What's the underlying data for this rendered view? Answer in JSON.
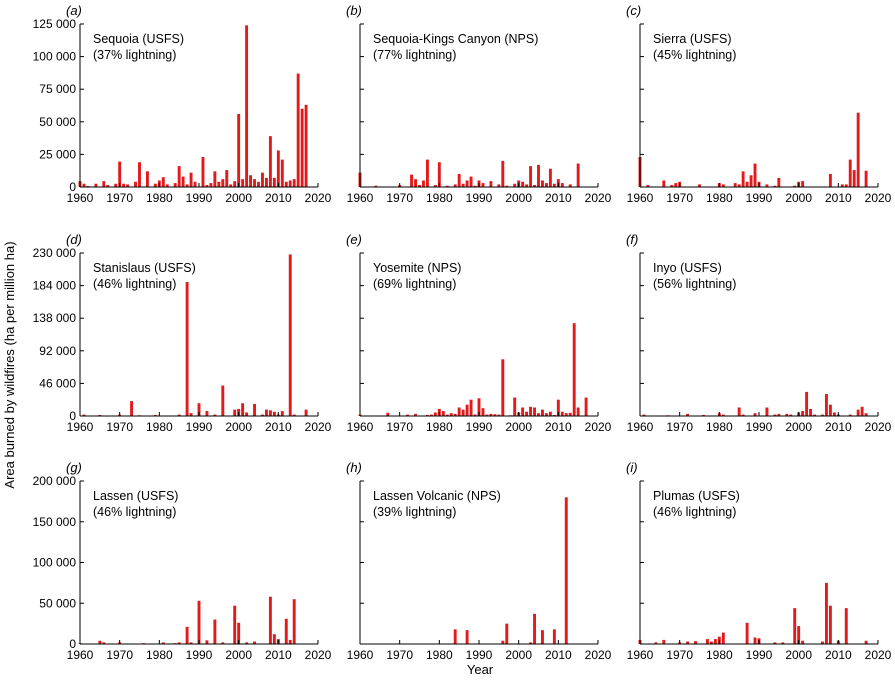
{
  "figure": {
    "ylabel": "Area burned by wildfires (ha per million ha)",
    "xlabel": "Year",
    "bar_color": "#e31a1c"
  },
  "chart_data": [
    {
      "type": "bar",
      "panel": "(a)",
      "title": "Sequoia (USFS)",
      "subtitle": "(37% lightning)",
      "xlim": [
        1960,
        2020
      ],
      "ylim": [
        0,
        125000
      ],
      "xticks": [
        1960,
        1970,
        1980,
        1990,
        2000,
        2010,
        2020
      ],
      "yticks": [
        0,
        25000,
        50000,
        75000,
        100000,
        125000
      ],
      "ytick_labels": [
        "0",
        "25 000",
        "50 000",
        "75 000",
        "100 000",
        "125 000"
      ],
      "x": [
        1960,
        1961,
        1962,
        1964,
        1966,
        1967,
        1969,
        1970,
        1971,
        1972,
        1974,
        1975,
        1977,
        1979,
        1980,
        1981,
        1982,
        1984,
        1985,
        1986,
        1987,
        1988,
        1989,
        1991,
        1992,
        1993,
        1994,
        1995,
        1996,
        1997,
        1998,
        1999,
        2000,
        2001,
        2002,
        2003,
        2004,
        2005,
        2006,
        2007,
        2008,
        2009,
        2010,
        2011,
        2012,
        2013,
        2014,
        2015,
        2016,
        2017
      ],
      "values": [
        4500,
        2500,
        800,
        2500,
        4500,
        1500,
        2500,
        19500,
        2500,
        2000,
        4000,
        19000,
        12000,
        2500,
        5000,
        7500,
        2000,
        3000,
        16000,
        8000,
        2000,
        11000,
        4000,
        23000,
        1500,
        3000,
        12000,
        4000,
        6000,
        13000,
        2000,
        4500,
        56000,
        6000,
        124000,
        9000,
        6000,
        4000,
        11000,
        7000,
        39000,
        7000,
        28000,
        21000,
        4000,
        5000,
        6000,
        87000,
        60000,
        63000
      ]
    },
    {
      "type": "bar",
      "panel": "(b)",
      "title": "Sequoia-Kings Canyon (NPS)",
      "subtitle": "(77% lightning)",
      "xlim": [
        1960,
        2020
      ],
      "ylim": [
        0,
        125000
      ],
      "xticks": [
        1960,
        1970,
        1980,
        1990,
        2000,
        2010,
        2020
      ],
      "x": [
        1960,
        1964,
        1970,
        1973,
        1974,
        1975,
        1976,
        1977,
        1979,
        1980,
        1982,
        1984,
        1985,
        1986,
        1987,
        1988,
        1989,
        1990,
        1991,
        1993,
        1995,
        1996,
        1997,
        1999,
        2000,
        2001,
        2002,
        2003,
        2004,
        2005,
        2006,
        2007,
        2008,
        2009,
        2010,
        2011,
        2013,
        2015
      ],
      "values": [
        11000,
        1000,
        1500,
        9500,
        6000,
        1500,
        5000,
        21000,
        1500,
        19000,
        1000,
        2000,
        10000,
        2500,
        5000,
        8000,
        1000,
        5000,
        3000,
        4500,
        2000,
        20000,
        1000,
        2500,
        5000,
        4000,
        2000,
        16000,
        1500,
        17000,
        5000,
        3000,
        14000,
        2500,
        6000,
        3000,
        2000,
        18000
      ]
    },
    {
      "type": "bar",
      "panel": "(c)",
      "title": "Sierra (USFS)",
      "subtitle": "(45% lightning)",
      "xlim": [
        1960,
        2020
      ],
      "ylim": [
        0,
        125000
      ],
      "xticks": [
        1960,
        1970,
        1980,
        1990,
        2000,
        2010,
        2020
      ],
      "x": [
        1960,
        1962,
        1966,
        1968,
        1969,
        1970,
        1975,
        1980,
        1981,
        1984,
        1985,
        1986,
        1987,
        1988,
        1989,
        1990,
        1992,
        1994,
        1995,
        1999,
        2000,
        2001,
        2008,
        2011,
        2012,
        2013,
        2014,
        2015,
        2017
      ],
      "values": [
        23000,
        1500,
        5000,
        1500,
        3000,
        4000,
        2000,
        3000,
        2000,
        3000,
        2000,
        12000,
        4000,
        9000,
        18000,
        4000,
        2000,
        1000,
        7000,
        1000,
        4000,
        4500,
        10000,
        2000,
        2000,
        21000,
        13000,
        57000,
        12500
      ]
    },
    {
      "type": "bar",
      "panel": "(d)",
      "title": "Stanislaus (USFS)",
      "subtitle": "(46% lightning)",
      "xlim": [
        1960,
        2020
      ],
      "ylim": [
        0,
        230000
      ],
      "xticks": [
        1960,
        1970,
        1980,
        1990,
        2000,
        2010,
        2020
      ],
      "yticks": [
        0,
        46000,
        92000,
        138000,
        184000,
        230000
      ],
      "ytick_labels": [
        "0",
        "46 000",
        "92 000",
        "138 000",
        "184 000",
        "230 000"
      ],
      "x": [
        1961,
        1965,
        1970,
        1973,
        1975,
        1979,
        1985,
        1987,
        1988,
        1990,
        1992,
        1994,
        1996,
        1999,
        2000,
        2001,
        2002,
        2004,
        2006,
        2007,
        2008,
        2009,
        2010,
        2011,
        2013,
        2014,
        2017
      ],
      "values": [
        2000,
        1500,
        2000,
        21000,
        1000,
        1500,
        2000,
        189000,
        4000,
        18000,
        7000,
        2000,
        43000,
        9000,
        10000,
        18000,
        5000,
        17000,
        2000,
        9000,
        8000,
        6000,
        2000,
        7000,
        228000,
        2000,
        9000
      ]
    },
    {
      "type": "bar",
      "panel": "(e)",
      "title": "Yosemite (NPS)",
      "subtitle": "(69% lightning)",
      "xlim": [
        1960,
        2020
      ],
      "ylim": [
        0,
        230000
      ],
      "xticks": [
        1960,
        1970,
        1980,
        1990,
        2000,
        2010,
        2020
      ],
      "x": [
        1960,
        1967,
        1972,
        1974,
        1977,
        1978,
        1979,
        1980,
        1981,
        1982,
        1983,
        1984,
        1985,
        1986,
        1987,
        1988,
        1989,
        1990,
        1991,
        1992,
        1993,
        1994,
        1995,
        1996,
        1998,
        1999,
        2000,
        2001,
        2002,
        2003,
        2004,
        2005,
        2006,
        2007,
        2008,
        2009,
        2010,
        2011,
        2012,
        2013,
        2014,
        2015,
        2017
      ],
      "values": [
        2000,
        4500,
        2000,
        3000,
        1500,
        2000,
        5000,
        10000,
        7000,
        2000,
        4000,
        3000,
        12000,
        9000,
        16000,
        23000,
        2000,
        25000,
        11000,
        2000,
        3000,
        2500,
        2000,
        80000,
        1000,
        26000,
        5000,
        12000,
        6000,
        13000,
        12000,
        4000,
        9000,
        4000,
        6000,
        1500,
        23000,
        6000,
        4000,
        4500,
        131000,
        12000,
        26000
      ]
    },
    {
      "type": "bar",
      "panel": "(f)",
      "title": "Inyo (USFS)",
      "subtitle": "(56% lightning)",
      "xlim": [
        1960,
        2020
      ],
      "ylim": [
        0,
        230000
      ],
      "xticks": [
        1960,
        1970,
        1980,
        1990,
        2000,
        2010,
        2020
      ],
      "x": [
        1961,
        1967,
        1972,
        1976,
        1980,
        1981,
        1985,
        1986,
        1989,
        1992,
        1994,
        1995,
        1997,
        1998,
        2000,
        2001,
        2002,
        2003,
        2004,
        2006,
        2007,
        2008,
        2009,
        2010,
        2013,
        2015,
        2016,
        2017
      ],
      "values": [
        2000,
        1000,
        3000,
        1500,
        4000,
        2000,
        12000,
        2000,
        4000,
        12000,
        2000,
        3000,
        3000,
        2000,
        5000,
        7000,
        34000,
        10000,
        2000,
        2000,
        31000,
        16000,
        5000,
        2000,
        2000,
        9000,
        13000,
        4000
      ]
    },
    {
      "type": "bar",
      "panel": "(g)",
      "title": "Lassen (USFS)",
      "subtitle": "(46% lightning)",
      "xlim": [
        1960,
        2020
      ],
      "ylim": [
        0,
        200000
      ],
      "xticks": [
        1960,
        1970,
        1980,
        1990,
        2000,
        2010,
        2020
      ],
      "yticks": [
        0,
        50000,
        100000,
        150000,
        200000
      ],
      "ytick_labels": [
        "0",
        "50 000",
        "100 000",
        "150 000",
        "200 000"
      ],
      "x": [
        1960,
        1965,
        1966,
        1970,
        1976,
        1981,
        1984,
        1985,
        1987,
        1988,
        1990,
        1992,
        1994,
        1996,
        1999,
        2000,
        2002,
        2004,
        2008,
        2009,
        2010,
        2012,
        2013,
        2014
      ],
      "values": [
        1000,
        4000,
        2000,
        2000,
        1000,
        2000,
        1000,
        2000,
        21000,
        2000,
        53000,
        4500,
        30000,
        2000,
        47000,
        26000,
        2000,
        3000,
        58000,
        12000,
        6000,
        31000,
        5000,
        55000
      ]
    },
    {
      "type": "bar",
      "panel": "(h)",
      "title": "Lassen Volcanic (NPS)",
      "subtitle": "(39% lightning)",
      "xlim": [
        1960,
        2020
      ],
      "ylim": [
        0,
        200000
      ],
      "xticks": [
        1960,
        1970,
        1980,
        1990,
        2000,
        2010,
        2020
      ],
      "x": [
        1984,
        1987,
        1996,
        1997,
        2003,
        2004,
        2006,
        2009,
        2012
      ],
      "values": [
        18000,
        17000,
        4000,
        25000,
        2000,
        37000,
        17000,
        18000,
        180000
      ]
    },
    {
      "type": "bar",
      "panel": "(i)",
      "title": "Plumas (USFS)",
      "subtitle": "(46% lightning)",
      "xlim": [
        1960,
        2020
      ],
      "ylim": [
        0,
        200000
      ],
      "xticks": [
        1960,
        1970,
        1980,
        1990,
        2000,
        2010,
        2020
      ],
      "x": [
        1960,
        1964,
        1966,
        1970,
        1972,
        1974,
        1977,
        1978,
        1979,
        1980,
        1981,
        1987,
        1989,
        1990,
        1994,
        1996,
        1999,
        2000,
        2001,
        2006,
        2007,
        2008,
        2010,
        2012,
        2017
      ],
      "values": [
        5000,
        2000,
        5000,
        2000,
        3000,
        3500,
        6000,
        3000,
        6000,
        9000,
        14000,
        26000,
        8000,
        7000,
        2000,
        2000,
        44000,
        22000,
        4000,
        3000,
        75000,
        47000,
        4000,
        44000,
        4000
      ]
    }
  ]
}
